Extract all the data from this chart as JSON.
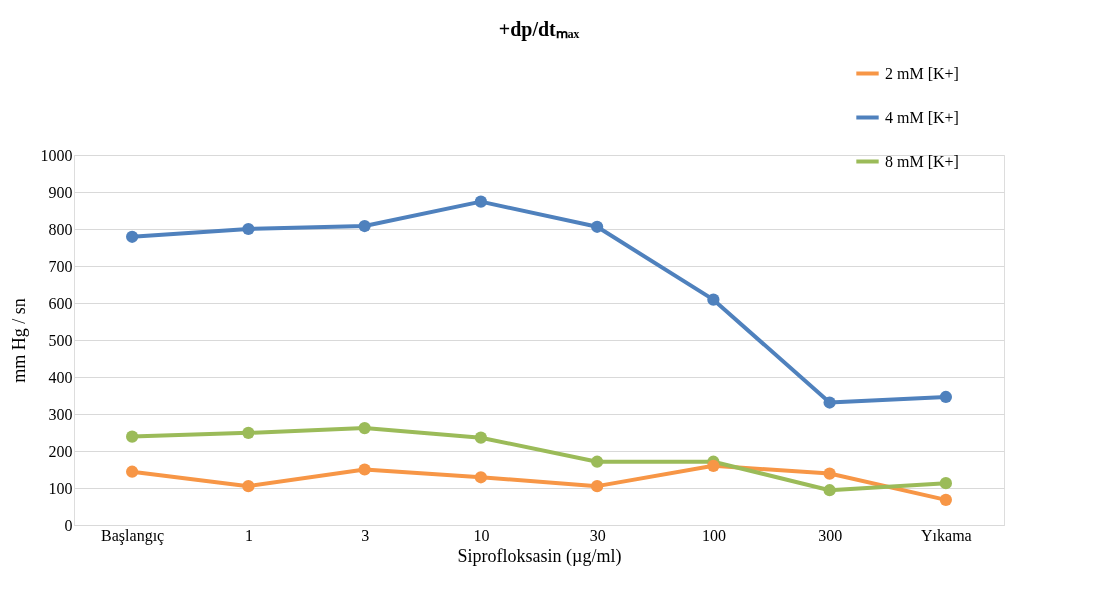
{
  "chart_data": {
    "type": "line",
    "title": "+dp/dtₘₐₓ",
    "xlabel": "Siprofloksasin (µg/ml)",
    "ylabel": "mm Hg / sn",
    "categories": [
      "Başlangıç",
      "1",
      "3",
      "10",
      "30",
      "100",
      "300",
      "Yıkama"
    ],
    "series": [
      {
        "name": "2 mM [K+]",
        "color": "#f79646",
        "values": [
          144,
          105,
          150,
          129,
          105,
          160,
          139,
          68
        ]
      },
      {
        "name": "4 mM [K+]",
        "color": "#4f81bd",
        "values": [
          779,
          800,
          808,
          874,
          806,
          609,
          331,
          346
        ]
      },
      {
        "name": "8 mM [K+]",
        "color": "#9bbb59",
        "values": [
          239,
          249,
          262,
          236,
          171,
          171,
          94,
          113
        ]
      }
    ],
    "ylim": [
      0,
      1000
    ],
    "yticks": [
      0,
      100,
      200,
      300,
      400,
      500,
      600,
      700,
      800,
      900,
      1000
    ],
    "grid": "y",
    "legend": "top right",
    "marker": "circle",
    "line_style": "solid"
  }
}
